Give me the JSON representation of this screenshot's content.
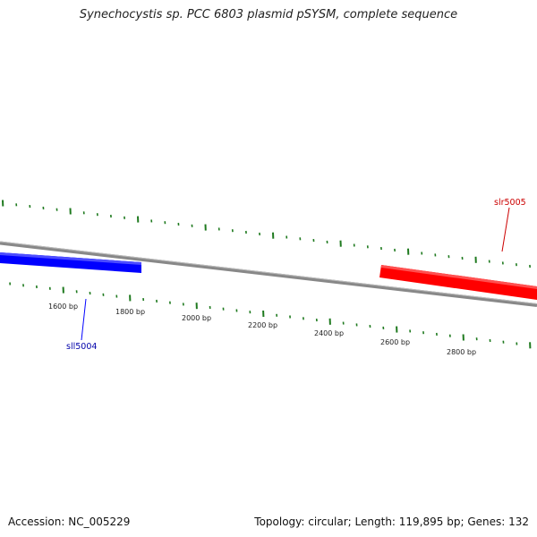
{
  "title": "Synechocystis sp. PCC 6803 plasmid pSYSM, complete sequence",
  "footer": {
    "accession": "Accession: NC_005229",
    "summary": "Topology: circular; Length: 119,895 bp; Genes: 132"
  },
  "colors": {
    "backbone": "#888888",
    "tick_marks": "#1f7a1f",
    "reverse_strand_gene": "#0000ff",
    "forward_strand_gene": "#ff0000"
  },
  "tick_labels": [
    "1600 bp",
    "1800 bp",
    "2000 bp",
    "2200 bp",
    "2400 bp",
    "2600 bp",
    "2800 bp"
  ],
  "genes": [
    {
      "name": "sll5004",
      "strand": "reverse",
      "color": "#0000ff"
    },
    {
      "name": "slr5005",
      "strand": "forward",
      "color": "#ff0000"
    }
  ]
}
